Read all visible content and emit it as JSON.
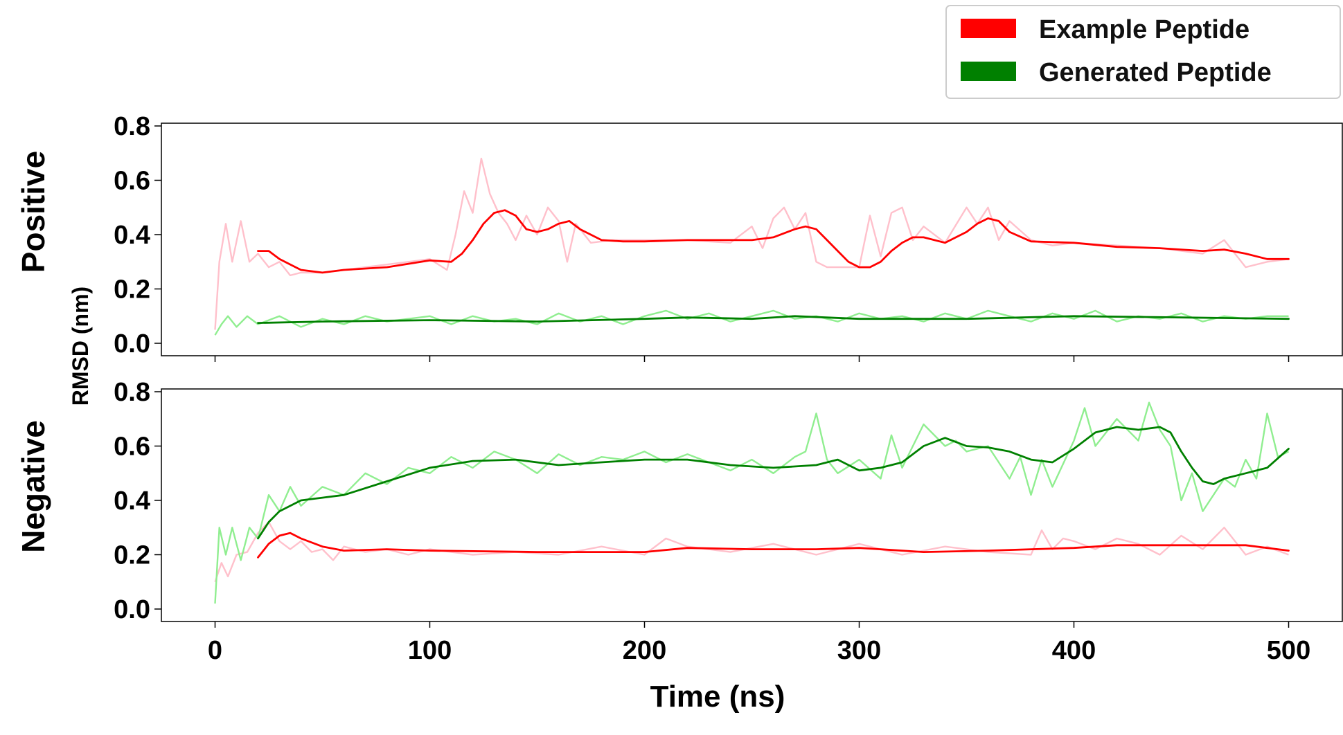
{
  "chart_data": {
    "type": "line",
    "xlabel": "Time (ns)",
    "ylabel": "RMSD (nm)",
    "xlim": [
      -25,
      525
    ],
    "ylim": [
      0,
      0.8
    ],
    "xticks": [
      0,
      100,
      200,
      300,
      400,
      500
    ],
    "yticks": [
      0.0,
      0.2,
      0.4,
      0.6,
      0.8
    ],
    "ytick_labels": [
      "0.0",
      "0.2",
      "0.4",
      "0.6",
      "0.8"
    ],
    "grid": false,
    "legend": {
      "placement": "top-right",
      "entries": [
        {
          "name": "Example Peptide",
          "color": "#ff0000"
        },
        {
          "name": "Generated Peptide",
          "color": "#008000"
        }
      ]
    },
    "colors": {
      "example_smooth": "#ff0000",
      "example_raw": "#ffc0cb",
      "generated_smooth": "#008000",
      "generated_raw": "#90ee90"
    },
    "panels": [
      {
        "label": "Positive",
        "series": [
          {
            "name": "Example Peptide",
            "raw": {
              "x": [
                0,
                2,
                5,
                8,
                12,
                16,
                20,
                25,
                30,
                35,
                40,
                50,
                60,
                70,
                80,
                90,
                100,
                108,
                112,
                116,
                120,
                124,
                128,
                132,
                136,
                140,
                145,
                150,
                155,
                160,
                164,
                168,
                175,
                185,
                200,
                220,
                240,
                250,
                255,
                260,
                265,
                270,
                275,
                280,
                285,
                290,
                300,
                305,
                310,
                315,
                320,
                325,
                330,
                340,
                350,
                355,
                360,
                365,
                370,
                380,
                390,
                400,
                420,
                440,
                460,
                470,
                480,
                490,
                500
              ],
              "y": [
                0.05,
                0.3,
                0.44,
                0.3,
                0.45,
                0.3,
                0.33,
                0.28,
                0.3,
                0.25,
                0.26,
                0.26,
                0.27,
                0.28,
                0.29,
                0.3,
                0.31,
                0.27,
                0.4,
                0.56,
                0.48,
                0.68,
                0.55,
                0.48,
                0.44,
                0.38,
                0.47,
                0.4,
                0.5,
                0.45,
                0.3,
                0.44,
                0.37,
                0.38,
                0.38,
                0.38,
                0.37,
                0.43,
                0.35,
                0.46,
                0.5,
                0.42,
                0.48,
                0.3,
                0.28,
                0.28,
                0.28,
                0.47,
                0.32,
                0.48,
                0.5,
                0.38,
                0.43,
                0.37,
                0.5,
                0.44,
                0.5,
                0.38,
                0.45,
                0.38,
                0.36,
                0.37,
                0.36,
                0.35,
                0.33,
                0.38,
                0.28,
                0.3,
                0.31
              ]
            },
            "smooth": {
              "x": [
                20,
                25,
                30,
                40,
                50,
                60,
                80,
                100,
                110,
                115,
                120,
                125,
                130,
                135,
                140,
                145,
                150,
                155,
                160,
                165,
                170,
                180,
                190,
                200,
                220,
                240,
                250,
                260,
                270,
                275,
                280,
                285,
                290,
                295,
                300,
                305,
                310,
                315,
                320,
                325,
                330,
                340,
                350,
                355,
                360,
                365,
                370,
                380,
                400,
                420,
                440,
                460,
                470,
                480,
                490,
                500
              ],
              "y": [
                0.34,
                0.34,
                0.31,
                0.27,
                0.26,
                0.27,
                0.28,
                0.305,
                0.3,
                0.33,
                0.38,
                0.44,
                0.48,
                0.49,
                0.47,
                0.42,
                0.41,
                0.42,
                0.44,
                0.45,
                0.42,
                0.38,
                0.375,
                0.375,
                0.38,
                0.38,
                0.38,
                0.39,
                0.42,
                0.43,
                0.42,
                0.38,
                0.34,
                0.3,
                0.28,
                0.28,
                0.3,
                0.34,
                0.37,
                0.39,
                0.39,
                0.37,
                0.41,
                0.44,
                0.46,
                0.45,
                0.41,
                0.375,
                0.37,
                0.355,
                0.35,
                0.34,
                0.345,
                0.33,
                0.31,
                0.31
              ]
            }
          },
          {
            "name": "Generated Peptide",
            "raw": {
              "x": [
                0,
                3,
                6,
                10,
                15,
                20,
                30,
                40,
                50,
                60,
                70,
                80,
                90,
                100,
                110,
                120,
                130,
                140,
                150,
                160,
                170,
                180,
                190,
                200,
                210,
                220,
                230,
                240,
                250,
                260,
                270,
                280,
                290,
                300,
                310,
                320,
                330,
                340,
                350,
                360,
                370,
                380,
                390,
                400,
                410,
                420,
                430,
                440,
                450,
                460,
                470,
                480,
                490,
                500
              ],
              "y": [
                0.03,
                0.07,
                0.1,
                0.06,
                0.1,
                0.07,
                0.1,
                0.06,
                0.09,
                0.07,
                0.1,
                0.08,
                0.09,
                0.1,
                0.07,
                0.1,
                0.08,
                0.09,
                0.07,
                0.11,
                0.08,
                0.1,
                0.07,
                0.1,
                0.12,
                0.09,
                0.11,
                0.08,
                0.1,
                0.12,
                0.09,
                0.1,
                0.08,
                0.11,
                0.09,
                0.1,
                0.08,
                0.11,
                0.09,
                0.12,
                0.1,
                0.08,
                0.11,
                0.09,
                0.12,
                0.08,
                0.1,
                0.09,
                0.11,
                0.08,
                0.1,
                0.09,
                0.1,
                0.1
              ]
            },
            "smooth": {
              "x": [
                20,
                50,
                100,
                150,
                200,
                220,
                250,
                270,
                300,
                350,
                400,
                450,
                500
              ],
              "y": [
                0.075,
                0.08,
                0.085,
                0.08,
                0.09,
                0.095,
                0.09,
                0.1,
                0.09,
                0.09,
                0.1,
                0.095,
                0.09
              ]
            }
          }
        ]
      },
      {
        "label": "Negative",
        "series": [
          {
            "name": "Example Peptide",
            "raw": {
              "x": [
                0,
                3,
                6,
                10,
                15,
                20,
                25,
                30,
                35,
                40,
                45,
                50,
                55,
                60,
                70,
                80,
                90,
                100,
                120,
                140,
                160,
                180,
                200,
                210,
                220,
                240,
                260,
                280,
                300,
                320,
                340,
                360,
                380,
                385,
                390,
                395,
                400,
                410,
                420,
                430,
                440,
                450,
                460,
                470,
                480,
                490,
                500
              ],
              "y": [
                0.1,
                0.17,
                0.12,
                0.2,
                0.21,
                0.28,
                0.32,
                0.25,
                0.22,
                0.25,
                0.21,
                0.22,
                0.18,
                0.23,
                0.21,
                0.22,
                0.2,
                0.22,
                0.2,
                0.21,
                0.2,
                0.23,
                0.2,
                0.26,
                0.23,
                0.21,
                0.24,
                0.2,
                0.24,
                0.2,
                0.23,
                0.21,
                0.2,
                0.29,
                0.22,
                0.26,
                0.25,
                0.22,
                0.26,
                0.24,
                0.2,
                0.27,
                0.22,
                0.3,
                0.2,
                0.23,
                0.2
              ]
            },
            "smooth": {
              "x": [
                20,
                25,
                30,
                35,
                40,
                50,
                60,
                80,
                100,
                150,
                200,
                220,
                250,
                280,
                300,
                330,
                360,
                400,
                420,
                440,
                460,
                480,
                500
              ],
              "y": [
                0.19,
                0.24,
                0.27,
                0.28,
                0.26,
                0.23,
                0.215,
                0.22,
                0.215,
                0.21,
                0.21,
                0.225,
                0.22,
                0.22,
                0.225,
                0.21,
                0.215,
                0.225,
                0.235,
                0.235,
                0.235,
                0.235,
                0.215
              ]
            }
          },
          {
            "name": "Generated Peptide",
            "raw": {
              "x": [
                0,
                2,
                5,
                8,
                12,
                16,
                20,
                25,
                30,
                35,
                40,
                50,
                60,
                70,
                80,
                90,
                100,
                110,
                120,
                130,
                140,
                150,
                160,
                170,
                180,
                190,
                200,
                210,
                220,
                230,
                240,
                250,
                260,
                270,
                275,
                280,
                285,
                290,
                300,
                310,
                315,
                320,
                330,
                340,
                345,
                350,
                360,
                370,
                375,
                380,
                385,
                390,
                400,
                405,
                410,
                420,
                430,
                435,
                440,
                445,
                450,
                455,
                460,
                470,
                475,
                480,
                485,
                490,
                495,
                500
              ],
              "y": [
                0.02,
                0.3,
                0.2,
                0.3,
                0.18,
                0.3,
                0.26,
                0.42,
                0.36,
                0.45,
                0.38,
                0.45,
                0.42,
                0.5,
                0.46,
                0.52,
                0.5,
                0.56,
                0.52,
                0.58,
                0.55,
                0.5,
                0.57,
                0.53,
                0.56,
                0.55,
                0.58,
                0.54,
                0.57,
                0.54,
                0.51,
                0.55,
                0.5,
                0.56,
                0.58,
                0.72,
                0.55,
                0.5,
                0.55,
                0.48,
                0.64,
                0.52,
                0.68,
                0.6,
                0.62,
                0.58,
                0.6,
                0.48,
                0.56,
                0.42,
                0.55,
                0.45,
                0.62,
                0.74,
                0.6,
                0.7,
                0.62,
                0.76,
                0.66,
                0.6,
                0.4,
                0.5,
                0.36,
                0.48,
                0.45,
                0.55,
                0.48,
                0.72,
                0.56,
                0.58
              ]
            },
            "smooth": {
              "x": [
                20,
                25,
                30,
                40,
                50,
                60,
                80,
                100,
                120,
                140,
                160,
                180,
                200,
                220,
                240,
                260,
                280,
                290,
                300,
                310,
                320,
                330,
                340,
                350,
                360,
                370,
                380,
                390,
                400,
                410,
                420,
                430,
                440,
                445,
                450,
                455,
                460,
                465,
                470,
                480,
                490,
                500
              ],
              "y": [
                0.26,
                0.32,
                0.36,
                0.4,
                0.41,
                0.42,
                0.47,
                0.52,
                0.545,
                0.55,
                0.53,
                0.54,
                0.55,
                0.55,
                0.53,
                0.52,
                0.53,
                0.55,
                0.51,
                0.52,
                0.54,
                0.6,
                0.63,
                0.6,
                0.595,
                0.58,
                0.55,
                0.54,
                0.59,
                0.65,
                0.67,
                0.66,
                0.67,
                0.65,
                0.58,
                0.52,
                0.47,
                0.46,
                0.48,
                0.5,
                0.52,
                0.59
              ]
            }
          }
        ]
      }
    ]
  }
}
